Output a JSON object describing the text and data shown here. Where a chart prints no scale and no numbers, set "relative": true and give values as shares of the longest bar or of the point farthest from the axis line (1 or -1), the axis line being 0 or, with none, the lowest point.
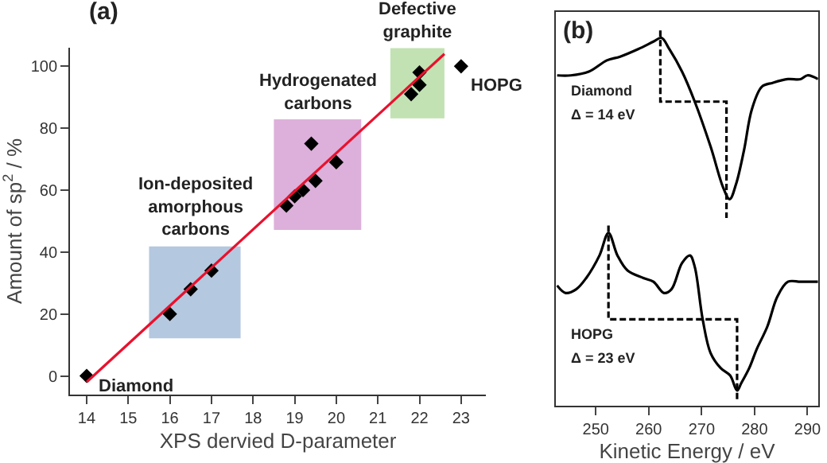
{
  "chart_data": [
    {
      "type": "scatter",
      "title": "(a)",
      "xlabel": "XPS dervied D-parameter",
      "ylabel": "Amount of sp$^{2}$ / %",
      "marker": "diamond",
      "grid": false,
      "xlim": [
        13.6,
        23.6
      ],
      "xticks": [
        14,
        15,
        16,
        17,
        18,
        19,
        20,
        21,
        22,
        23
      ],
      "ylim": [
        -6,
        106
      ],
      "yticks": [
        0,
        20,
        40,
        60,
        80,
        100
      ],
      "series": [
        {
          "type": "scatter",
          "color": "#000000",
          "x": [
            14,
            16,
            16.5,
            17,
            18.8,
            19,
            19.2,
            19.5,
            19.4,
            20,
            21.8,
            22,
            22,
            23
          ],
          "values": [
            0,
            20,
            28,
            34,
            55,
            58,
            60,
            63,
            75,
            69,
            91,
            94,
            98,
            100
          ]
        },
        {
          "type": "line",
          "marker": "none",
          "color": "#e8112d",
          "x": [
            14,
            22.6
          ],
          "values": [
            -2,
            104
          ]
        }
      ],
      "bands": [
        {
          "axis": "x",
          "from": 15.5,
          "to": 17.7,
          "label": "Ion-deposited amorphous carbons",
          "color": "#b4c8df"
        },
        {
          "axis": "x",
          "from": 18.5,
          "to": 20.6,
          "label": "Hydrogenated carbons",
          "color": "#dcb0da"
        },
        {
          "axis": "x",
          "from": 21.3,
          "to": 22.6,
          "label": "Defective graphite",
          "color": "#c2e2b3"
        }
      ],
      "annotations": [
        {
          "text": "Diamond",
          "x": 14,
          "y": 0
        },
        {
          "text": "HOPG",
          "x": 23,
          "y": 100
        }
      ]
    },
    {
      "type": "line",
      "title": "(b)",
      "xlabel": "Kinetic Energy / eV",
      "relative": true,
      "tick_labels": "x",
      "grid": false,
      "xlim": [
        242.5,
        292
      ],
      "xticks": [
        250,
        260,
        270,
        280,
        290
      ],
      "series": [
        {
          "color": "#000000",
          "x": [
            242.7,
            245.3,
            248.7,
            252.1,
            254.6,
            258.0,
            260.9,
            262.4,
            263.9,
            266.3,
            268.7,
            271.7,
            274.1,
            275.3,
            276.5,
            278.0,
            279.5,
            281.4,
            283.4,
            286.3,
            288.7,
            290.0,
            292.0
          ],
          "values": [
            0.88,
            0.88,
            0.89,
            0.92,
            0.93,
            0.95,
            0.97,
            0.98,
            0.95,
            0.89,
            0.81,
            0.69,
            0.58,
            0.55,
            0.59,
            0.68,
            0.79,
            0.85,
            0.86,
            0.87,
            0.87,
            0.88,
            0.87
          ]
        },
        {
          "color": "#000000",
          "x": [
            242.7,
            244.3,
            246.3,
            248.2,
            250.7,
            252.4,
            254.1,
            256.0,
            259.0,
            260.9,
            262.9,
            264.3,
            266.3,
            267.8,
            268.7,
            270.2,
            271.7,
            273.6,
            275.4,
            276.7,
            277.5,
            279.0,
            280.4,
            282.4,
            284.3,
            286.3,
            288.7,
            292.0
          ],
          "values": [
            0.32,
            0.3,
            0.31,
            0.34,
            0.4,
            0.46,
            0.4,
            0.36,
            0.34,
            0.33,
            0.3,
            0.31,
            0.38,
            0.4,
            0.37,
            0.23,
            0.14,
            0.1,
            0.08,
            0.04,
            0.06,
            0.1,
            0.15,
            0.21,
            0.29,
            0.33,
            0.33,
            0.33
          ]
        },
        {
          "color": "#000000",
          "line_style": "dashed",
          "x": [
            262.2,
            262.2,
            274.7,
            274.7
          ],
          "values": [
            1.0,
            0.81,
            0.81,
            0.5
          ]
        },
        {
          "color": "#000000",
          "line_style": "dashed",
          "x": [
            252.4,
            252.4,
            276.7,
            276.7
          ],
          "values": [
            0.48,
            0.23,
            0.23,
            0.01
          ]
        }
      ],
      "annotations": [
        "Diamond",
        "Δ = 14 eV",
        "HOPG",
        "Δ = 23 eV"
      ]
    }
  ]
}
